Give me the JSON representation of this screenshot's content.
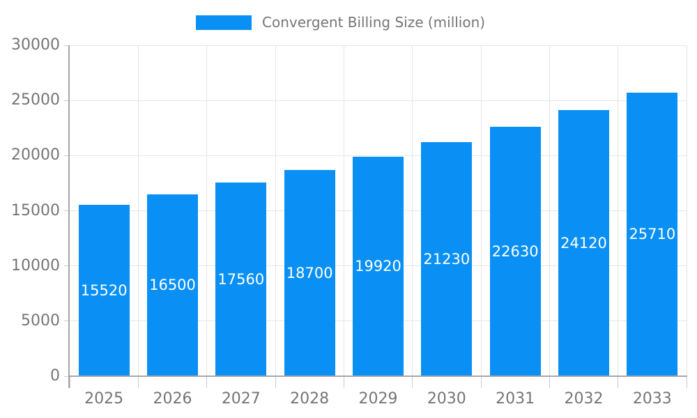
{
  "legend": {
    "label": "Convergent Billing Size (million)"
  },
  "colors": {
    "bar": "#0a90f5",
    "axis": "#a6a6a6",
    "grid": "#e6e6e6",
    "tick": "#cccccc",
    "text": "#757575",
    "bar_label": "#ffffff",
    "background": "#ffffff"
  },
  "chart_data": {
    "type": "bar",
    "title": "Convergent Billing Size (million)",
    "series_name": "Convergent Billing Size (million)",
    "categories": [
      "2025",
      "2026",
      "2027",
      "2028",
      "2029",
      "2030",
      "2031",
      "2032",
      "2033"
    ],
    "values": [
      15520,
      16500,
      17560,
      18700,
      19920,
      21230,
      22630,
      24120,
      25710
    ],
    "xlabel": "",
    "ylabel": "",
    "ylim": [
      0,
      30000
    ],
    "yticks": [
      0,
      5000,
      10000,
      15000,
      20000,
      25000,
      30000
    ],
    "grid": true,
    "legend_position": "top-center",
    "bar_label_position": "inside-center"
  }
}
